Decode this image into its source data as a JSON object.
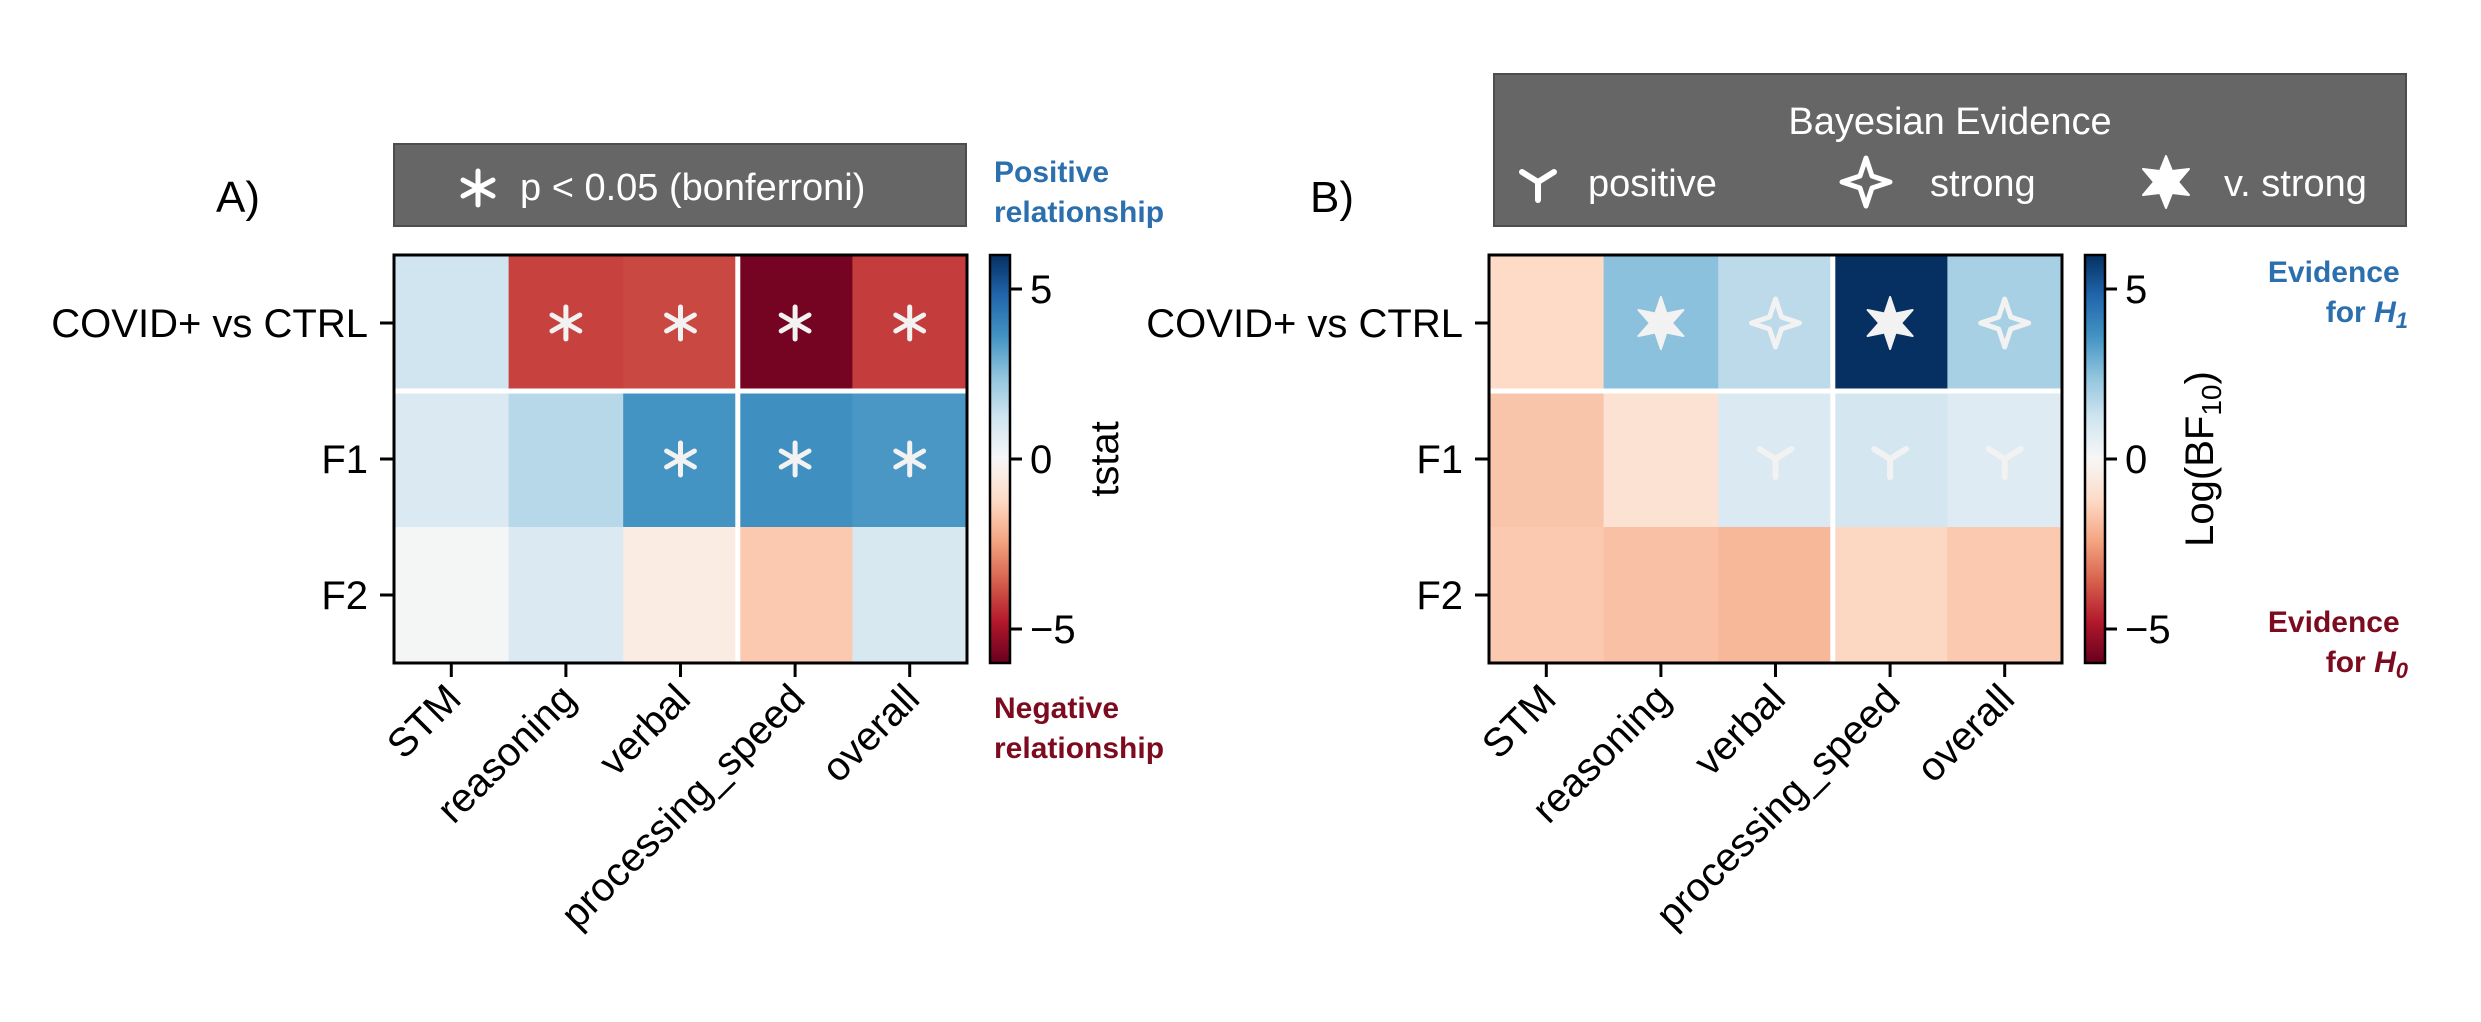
{
  "figure": {
    "panel_a_letter": "A)",
    "panel_b_letter": "B)",
    "panel_a_legend_text": "p < 0.05 (bonferroni)",
    "panel_a_positive_note": [
      "Positive",
      "relationship"
    ],
    "panel_a_negative_note": [
      "Negative",
      "relationship"
    ],
    "panel_b_legend_title": "Bayesian Evidence",
    "panel_b_legend_items": [
      {
        "label": "positive",
        "marker": "tripod-icon"
      },
      {
        "label": "strong",
        "marker": "four-point-star-icon"
      },
      {
        "label": "v. strong",
        "marker": "six-point-star-icon"
      }
    ],
    "panel_b_h1_note": [
      "Evidence",
      "for",
      "H",
      "1"
    ],
    "panel_b_h0_note": [
      "Evidence",
      "for",
      "H",
      "0"
    ],
    "colors": {
      "positive_note": "#2b6fae",
      "negative_note": "#7d0b1f",
      "legend_box": "#666666",
      "grid_line": "#ffffff",
      "marker": "#f2f2f2"
    }
  },
  "chart_data": [
    {
      "type": "heatmap",
      "panel": "A)",
      "x": [
        "STM",
        "reasoning",
        "verbal",
        "processing_speed",
        "overall"
      ],
      "y": [
        "COVID+ vs CTRL",
        "F1",
        "F2"
      ],
      "values": [
        [
          1.2,
          -4.1,
          -4.0,
          -5.8,
          -4.2
        ],
        [
          0.9,
          1.7,
          3.6,
          3.7,
          3.5
        ],
        [
          0.1,
          0.9,
          -0.5,
          -1.6,
          1.0
        ]
      ],
      "significant": [
        [
          false,
          true,
          true,
          true,
          true
        ],
        [
          false,
          false,
          true,
          true,
          true
        ],
        [
          false,
          false,
          false,
          false,
          false
        ]
      ],
      "colorbar_label": "tstat",
      "colorbar_ticks": [
        5,
        0,
        -5
      ],
      "clim": [
        -6,
        6
      ],
      "colormap": "RdBu"
    },
    {
      "type": "heatmap",
      "panel": "B)",
      "x": [
        "STM",
        "reasoning",
        "verbal",
        "processing_speed",
        "overall"
      ],
      "y": [
        "COVID+ vs CTRL",
        "F1",
        "F2"
      ],
      "values": [
        [
          -1.2,
          2.5,
          1.6,
          6.0,
          2.0
        ],
        [
          -1.7,
          -0.9,
          0.9,
          1.1,
          0.8
        ],
        [
          -1.6,
          -1.8,
          -2.0,
          -1.3,
          -1.6
        ]
      ],
      "evidence": [
        [
          "",
          "v. strong",
          "strong",
          "v. strong",
          "strong"
        ],
        [
          "",
          "",
          "positive",
          "positive",
          "positive"
        ],
        [
          "",
          "",
          "",
          "",
          ""
        ]
      ],
      "colorbar_label": "Log(BF",
      "colorbar_label_sub": "10",
      "colorbar_label_close": ")",
      "colorbar_ticks": [
        5,
        0,
        -5
      ],
      "clim": [
        -6,
        6
      ],
      "colormap": "RdBu"
    }
  ]
}
